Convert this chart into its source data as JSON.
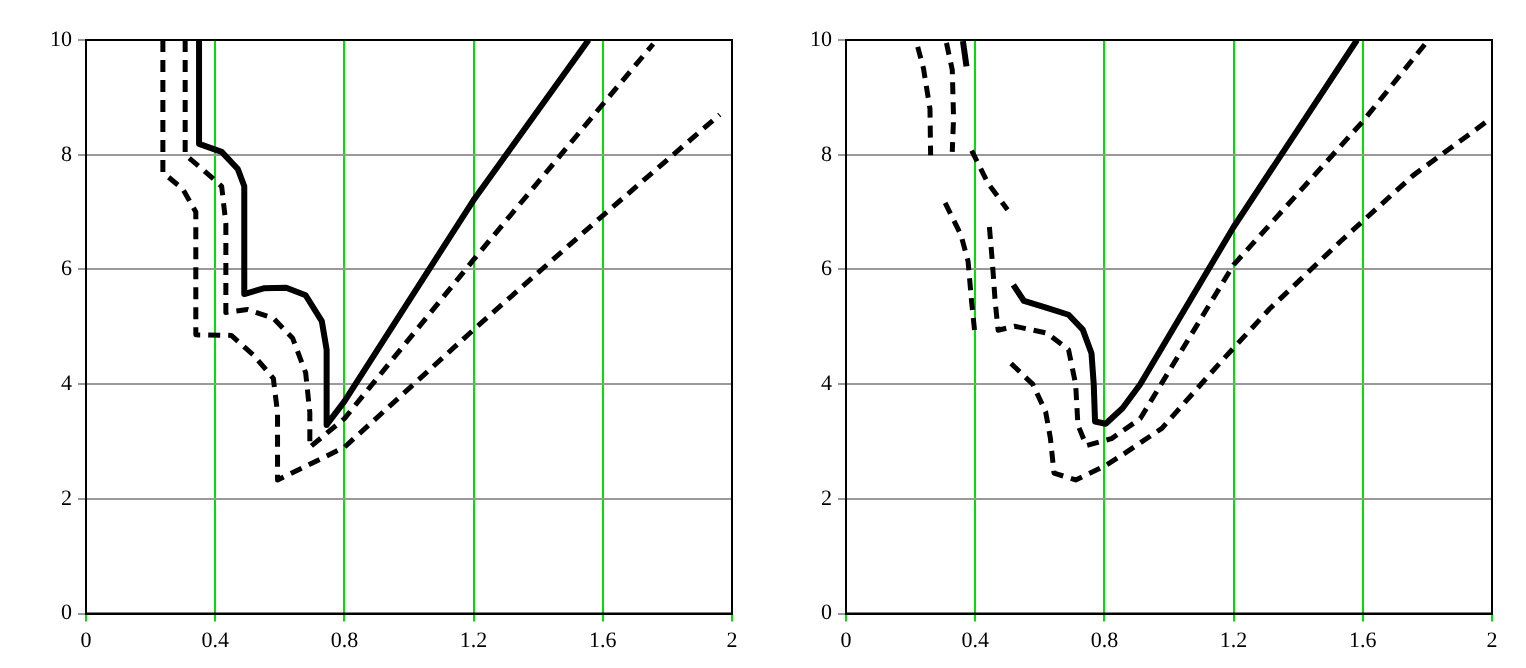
{
  "chart_data": [
    {
      "type": "line",
      "xlim": [
        0,
        2
      ],
      "ylim": [
        0,
        10
      ],
      "xticks": [
        0,
        0.4,
        0.8,
        1.2,
        1.6,
        2
      ],
      "yticks": [
        0,
        2,
        4,
        6,
        8,
        10
      ],
      "grid": true,
      "legend": false,
      "marker": "none",
      "series": [
        {
          "color": "#000000",
          "line_style": "solid",
          "x": [
            0.35,
            0.35,
            0.42,
            0.47,
            0.49,
            0.49,
            0.55,
            0.62,
            0.68,
            0.73,
            0.745,
            0.745,
            0.8,
            1.2,
            1.556
          ],
          "values": [
            10,
            8.19,
            8.05,
            7.75,
            7.45,
            5.57,
            5.67,
            5.68,
            5.55,
            5.1,
            4.6,
            3.29,
            3.7,
            7.21,
            10
          ]
        },
        {
          "color": "#000000",
          "line_style": "dashed",
          "x": [
            0.307,
            0.307,
            0.36,
            0.42,
            0.433,
            0.433,
            0.5,
            0.58,
            0.64,
            0.68,
            0.693,
            0.693,
            0.8,
            1.2,
            1.6,
            1.756
          ],
          "values": [
            10,
            8.0,
            7.75,
            7.45,
            6.8,
            5.25,
            5.3,
            5.15,
            4.8,
            4.2,
            3.5,
            2.9,
            3.4,
            6.17,
            8.88,
            9.93
          ]
        },
        {
          "color": "#000000",
          "line_style": "dashed",
          "x": [
            0.238,
            0.238,
            0.3,
            0.34,
            0.34,
            0.45,
            0.52,
            0.58,
            0.593,
            0.593,
            0.8,
            1.2,
            1.6,
            1.962
          ],
          "values": [
            10,
            7.69,
            7.4,
            7.0,
            4.86,
            4.85,
            4.5,
            4.1,
            3.5,
            2.33,
            2.9,
            4.95,
            6.94,
            8.7
          ]
        }
      ]
    },
    {
      "type": "line",
      "xlim": [
        0,
        2
      ],
      "ylim": [
        0,
        10
      ],
      "xticks": [
        0,
        0.4,
        0.8,
        1.2,
        1.6,
        2
      ],
      "yticks": [
        0,
        2,
        4,
        6,
        8,
        10
      ],
      "grid": true,
      "legend": false,
      "marker": "none",
      "series": [
        {
          "color": "#000000",
          "line_style": "solid",
          "x": [
            0.362,
            0.373,
            null,
            0.518,
            0.551,
            0.622,
            0.689,
            0.733,
            0.76,
            0.767,
            0.771,
            0.804,
            0.856,
            0.911,
            1.2,
            1.582
          ],
          "values": [
            9.98,
            9.54,
            null,
            5.73,
            5.45,
            5.33,
            5.21,
            4.95,
            4.54,
            4.0,
            3.35,
            3.31,
            3.58,
            4.0,
            6.74,
            10
          ]
        },
        {
          "color": "#000000",
          "line_style": "dashed",
          "x": [
            0.311,
            0.329,
            0.333,
            0.329,
            null,
            0.389,
            0.44,
            0.5,
            null,
            0.444,
            0.453,
            0.462,
            0.471,
            0.522,
            0.622,
            0.689,
            0.711,
            0.718,
            0.744,
            0.822,
            0.911,
            1.2,
            1.6,
            1.8
          ],
          "values": [
            9.95,
            9.48,
            8.64,
            8.05,
            null,
            8.07,
            7.5,
            7.04,
            null,
            6.74,
            6.14,
            5.43,
            4.94,
            5.01,
            4.89,
            4.6,
            4.0,
            3.29,
            2.93,
            3.05,
            3.4,
            6.08,
            8.58,
            9.98
          ]
        },
        {
          "color": "#000000",
          "line_style": "dashed",
          "x": [
            0.222,
            0.24,
            0.26,
            0.262,
            null,
            0.307,
            0.356,
            0.378,
            0.389,
            0.4,
            null,
            0.511,
            0.578,
            0.618,
            0.633,
            0.644,
            0.711,
            0.8,
            0.867,
            0.978,
            1.156,
            1.311,
            1.533,
            1.756,
            1.984
          ],
          "values": [
            9.88,
            9.5,
            8.8,
            7.99,
            null,
            7.16,
            6.6,
            6.14,
            5.43,
            4.83,
            null,
            4.36,
            4.0,
            3.52,
            3.05,
            2.45,
            2.33,
            2.57,
            2.81,
            3.23,
            4.36,
            5.31,
            6.5,
            7.64,
            8.58
          ]
        }
      ]
    }
  ]
}
